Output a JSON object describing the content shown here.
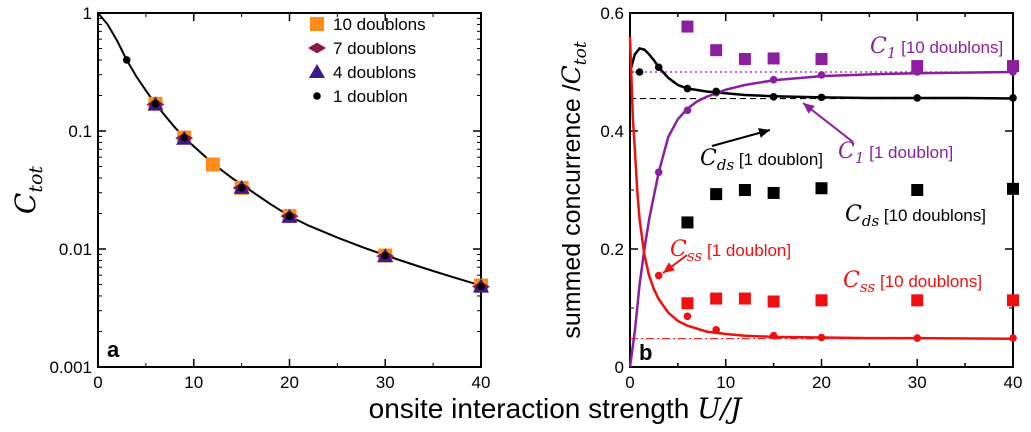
{
  "xlabel": "onsite interaction strength ",
  "xlabel_math": "U/J",
  "colors": {
    "orange": "#ff8c1a",
    "maroon": "#8b1a4a",
    "indigo": "#3d1a8c",
    "purple": "#8b1fa0",
    "red": "#ee1111",
    "black": "#000000"
  },
  "chart_data": [
    {
      "type": "scatter",
      "panel": "a",
      "ylabel": "C",
      "ylabel_sub": "tot",
      "xlim": [
        0,
        40
      ],
      "ylim": [
        0.001,
        1
      ],
      "yscale": "log",
      "xticks": [
        "0",
        "10",
        "20",
        "30",
        "40"
      ],
      "yticks": [
        {
          "value": 1,
          "label": "1"
        },
        {
          "value": 0.1,
          "label": "0.1"
        },
        {
          "value": 0.01,
          "label": "0.01"
        },
        {
          "value": 0.001,
          "label": "0.001"
        }
      ],
      "legend_position": "top-right",
      "series": [
        {
          "name": "10 doublons",
          "marker": "square",
          "color": "#ff8c1a",
          "x": [
            6,
            9,
            12,
            15,
            20,
            30,
            40
          ],
          "y": [
            0.17,
            0.088,
            0.052,
            0.033,
            0.019,
            0.0088,
            0.0049
          ]
        },
        {
          "name": "7 doublons",
          "marker": "diamond",
          "color": "#8b1a4a",
          "x": [
            6,
            9,
            15,
            20,
            30,
            40
          ],
          "y": [
            0.168,
            0.087,
            0.033,
            0.019,
            0.0087,
            0.0048
          ]
        },
        {
          "name": "4 doublons",
          "marker": "triangle",
          "color": "#3d1a8c",
          "x": [
            6,
            9,
            15,
            20,
            30,
            40
          ],
          "y": [
            0.168,
            0.086,
            0.033,
            0.0188,
            0.0087,
            0.0048
          ]
        },
        {
          "name": "1 doublon",
          "marker": "circle",
          "color": "#000000",
          "x": [
            3,
            6,
            9,
            15,
            20,
            30,
            40
          ],
          "y": [
            0.4,
            0.17,
            0.088,
            0.033,
            0.019,
            0.0088,
            0.0048
          ]
        }
      ],
      "curve": {
        "x": [
          0,
          1,
          2,
          3,
          4,
          5,
          6,
          7,
          8,
          9,
          10,
          12,
          14,
          16,
          18,
          20,
          22,
          25,
          28,
          31,
          34,
          37,
          40
        ],
        "y": [
          1.0,
          0.8,
          0.58,
          0.4,
          0.29,
          0.22,
          0.17,
          0.135,
          0.108,
          0.088,
          0.074,
          0.053,
          0.04,
          0.031,
          0.024,
          0.019,
          0.0158,
          0.0125,
          0.0101,
          0.0083,
          0.0069,
          0.0058,
          0.0049
        ]
      }
    },
    {
      "type": "scatter",
      "panel": "b",
      "ylabel": "summed concurrence /",
      "ylabel_math": "C",
      "ylabel_sub": "tot",
      "xlim": [
        0,
        40
      ],
      "ylim": [
        0,
        0.6
      ],
      "xticks": [
        "0",
        "5",
        "10",
        "15",
        "20",
        "25",
        "30",
        "35",
        "40"
      ],
      "yticks": [
        {
          "value": 0,
          "label": "0"
        },
        {
          "value": 0.2,
          "label": "0.2"
        },
        {
          "value": 0.4,
          "label": "0.4"
        },
        {
          "value": 0.6,
          "label": "0.6"
        }
      ],
      "series": [
        {
          "name": "C1 [10 doublons]",
          "marker": "square",
          "color": "#8b1fa0",
          "x": [
            6,
            9,
            12,
            15,
            20,
            30,
            40
          ],
          "y": [
            0.577,
            0.537,
            0.522,
            0.523,
            0.522,
            0.51,
            0.51
          ]
        },
        {
          "name": "Cds [10 doublons]",
          "marker": "square",
          "color": "#000000",
          "x": [
            6,
            9,
            12,
            15,
            20,
            30,
            40
          ],
          "y": [
            0.245,
            0.293,
            0.3,
            0.295,
            0.303,
            0.3,
            0.302
          ]
        },
        {
          "name": "Css [10 doublons]",
          "marker": "square",
          "color": "#ee1111",
          "x": [
            6,
            9,
            12,
            15,
            20,
            30,
            40
          ],
          "y": [
            0.108,
            0.116,
            0.116,
            0.111,
            0.113,
            0.113,
            0.113
          ]
        },
        {
          "name": "C1 [1 doublon]",
          "marker": "circle",
          "color": "#8b1fa0",
          "x": [
            3,
            6,
            9,
            15,
            20,
            30,
            40
          ],
          "y": [
            0.33,
            0.435,
            0.465,
            0.487,
            0.495,
            0.5,
            0.5
          ]
        },
        {
          "name": "Cds [1 doublon]",
          "marker": "circle",
          "color": "#000000",
          "x": [
            1,
            3,
            6,
            9,
            15,
            20,
            30,
            40
          ],
          "y": [
            0.5,
            0.508,
            0.472,
            0.467,
            0.458,
            0.457,
            0.456,
            0.456
          ]
        },
        {
          "name": "Css [1 doublon]",
          "marker": "circle",
          "color": "#ee1111",
          "x": [
            3,
            6,
            9,
            15,
            20,
            30,
            40
          ],
          "y": [
            0.155,
            0.086,
            0.063,
            0.053,
            0.05,
            0.049,
            0.049
          ]
        }
      ],
      "curves": [
        {
          "color": "#000000",
          "x": [
            0,
            0.5,
            1,
            1.5,
            2,
            2.5,
            3,
            4,
            5,
            6,
            8,
            10,
            12,
            15,
            20,
            25,
            30,
            35,
            40
          ],
          "y": [
            0.5,
            0.53,
            0.54,
            0.538,
            0.53,
            0.52,
            0.508,
            0.49,
            0.478,
            0.472,
            0.467,
            0.464,
            0.461,
            0.459,
            0.457,
            0.456,
            0.456,
            0.456,
            0.455
          ]
        },
        {
          "color": "#8b1fa0",
          "x": [
            0,
            0.5,
            1,
            1.5,
            2,
            2.5,
            3,
            4,
            5,
            6,
            7,
            8,
            10,
            12,
            15,
            20,
            25,
            30,
            35,
            40
          ],
          "y": [
            0.0,
            0.06,
            0.14,
            0.2,
            0.25,
            0.29,
            0.33,
            0.39,
            0.42,
            0.438,
            0.45,
            0.458,
            0.47,
            0.478,
            0.486,
            0.493,
            0.496,
            0.498,
            0.499,
            0.5
          ]
        },
        {
          "color": "#ee1111",
          "x": [
            0,
            0.3,
            0.5,
            0.75,
            1,
            1.5,
            2,
            2.5,
            3,
            4,
            5,
            6,
            8,
            10,
            12,
            15,
            20,
            25,
            30,
            40
          ],
          "y": [
            0.56,
            0.42,
            0.37,
            0.3,
            0.25,
            0.19,
            0.155,
            0.132,
            0.115,
            0.092,
            0.078,
            0.07,
            0.06,
            0.056,
            0.053,
            0.051,
            0.05,
            0.049,
            0.049,
            0.048
          ]
        }
      ],
      "hlines": [
        {
          "y": 0.5,
          "color": "#8b1fa0",
          "style": "dotted"
        },
        {
          "y": 0.455,
          "color": "#000000",
          "style": "dashed"
        },
        {
          "y": 0.048,
          "color": "#ee1111",
          "style": "dashdot"
        }
      ],
      "annotations": [
        {
          "sym": "C",
          "sub": "1",
          "text": " [10 doublons]",
          "color": "#8b1fa0"
        },
        {
          "sym": "C",
          "sub": "1",
          "text": " [1 doublon]",
          "color": "#8b1fa0"
        },
        {
          "sym": "C",
          "sub": "ds",
          "text": " [1 doublon]",
          "color": "#000000"
        },
        {
          "sym": "C",
          "sub": "ds",
          "text": " [10 doublons]",
          "color": "#000000"
        },
        {
          "sym": "C",
          "sub": "ss",
          "text": " [1 doublon]",
          "color": "#ee1111"
        },
        {
          "sym": "C",
          "sub": "ss",
          "text": " [10 doublons]",
          "color": "#ee1111"
        }
      ]
    }
  ]
}
